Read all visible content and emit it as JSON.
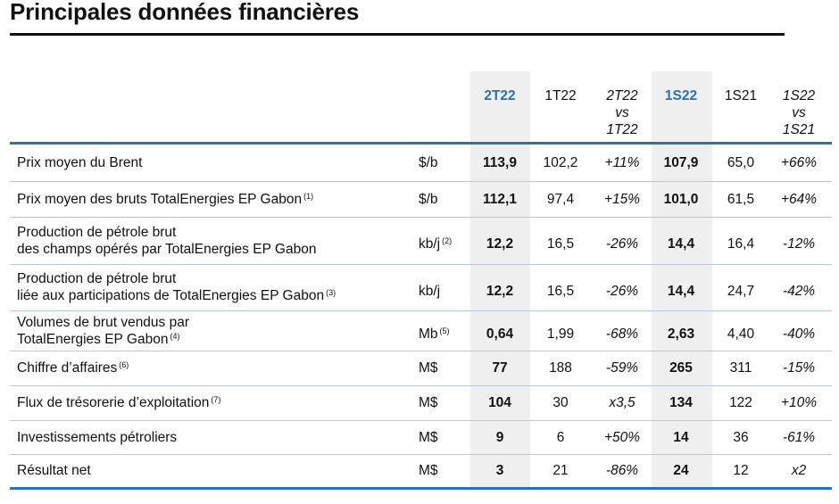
{
  "title": "Principales données financières",
  "columns": [
    {
      "line1": "2T22"
    },
    {
      "line1": "1T22"
    },
    {
      "line1": "2T22",
      "line2": "vs",
      "line3": "1T22"
    },
    {
      "line1": "1S22"
    },
    {
      "line1": "1S21"
    },
    {
      "line1": "1S22",
      "line2": "vs",
      "line3": "1S21"
    }
  ],
  "rows": [
    {
      "label1": "Prix moyen du Brent",
      "unit": "$/b",
      "v": [
        "113,9",
        "102,2",
        "+11%",
        "107,9",
        "65,0",
        "+66%"
      ]
    },
    {
      "label1": "Prix moyen des bruts TotalEnergies EP Gabon",
      "note1": "(1)",
      "unit": "$/b",
      "v": [
        "112,1",
        "97,4",
        "+15%",
        "101,0",
        "61,5",
        "+64%"
      ]
    },
    {
      "label1": "Production de pétrole brut",
      "label2": "des champs opérés par TotalEnergies EP Gabon",
      "unit": "kb/j",
      "unit_note": "(2)",
      "v": [
        "12,2",
        "16,5",
        "-26%",
        "14,4",
        "16,4",
        "-12%"
      ]
    },
    {
      "label1": "Production de pétrole brut",
      "label2": "liée aux participations de TotalEnergies EP Gabon",
      "note2": "(3)",
      "unit": "kb/j",
      "v": [
        "12,2",
        "16,5",
        "-26%",
        "14,4",
        "24,7",
        "-42%"
      ]
    },
    {
      "label1": "Volumes de brut vendus par",
      "label2": "TotalEnergies EP Gabon",
      "note2": "(4)",
      "unit": "Mb",
      "unit_note": "(5)",
      "v": [
        "0,64",
        "1,99",
        "-68%",
        "2,63",
        "4,40",
        "-40%"
      ]
    },
    {
      "label1": "Chiffre d’affaires",
      "note1": "(6)",
      "unit": "M$",
      "v": [
        "77",
        "188",
        "-59%",
        "265",
        "311",
        "-15%"
      ]
    },
    {
      "label1": "Flux de trésorerie d’exploitation",
      "note1": "(7)",
      "unit": "M$",
      "v": [
        "104",
        "30",
        "x3,5",
        "134",
        "122",
        "+10%"
      ]
    },
    {
      "label1": "Investissements pétroliers",
      "unit": "M$",
      "v": [
        "9",
        "6",
        "+50%",
        "14",
        "36",
        "-61%"
      ]
    },
    {
      "label1": "Résultat net",
      "unit": "M$",
      "v": [
        "3",
        "21",
        "-86%",
        "24",
        "12",
        "x2"
      ]
    }
  ],
  "colors": {
    "accent": "#2a71b8",
    "highlight_bg": "#efefef"
  }
}
